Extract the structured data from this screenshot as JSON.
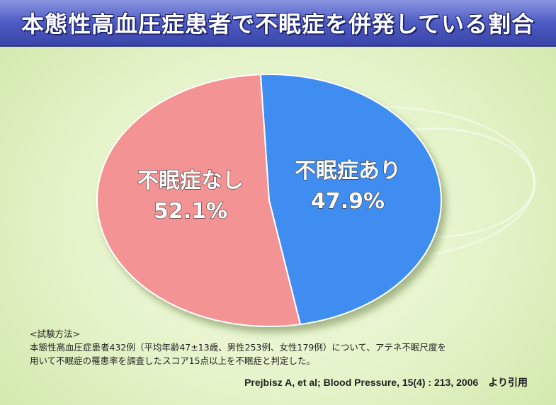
{
  "title": "本態性高血圧症患者で不眠症を併発している割合",
  "chart_data": {
    "type": "pie",
    "title": "本態性高血圧症患者で不眠症を併発している割合",
    "slices": [
      {
        "label": "不眠症あり",
        "value": 47.9,
        "value_label": "47.9%",
        "color": "#3f8df2"
      },
      {
        "label": "不眠症なし",
        "value": 52.1,
        "value_label": "52.1%",
        "color": "#f49393"
      }
    ]
  },
  "method": {
    "heading": "<試験方法>",
    "line1": "本態性高血圧症患者432例（平均年齢47±13歳、男性253例、女性179例）について、アテネ不眠尺度を",
    "line2": "用いて不眠症の罹患率を調査したスコア15点以上を不眠症と判定した。"
  },
  "citation": "Prejbisz A, et al; Blood Pressure, 15(4) : 213, 2006　より引用"
}
